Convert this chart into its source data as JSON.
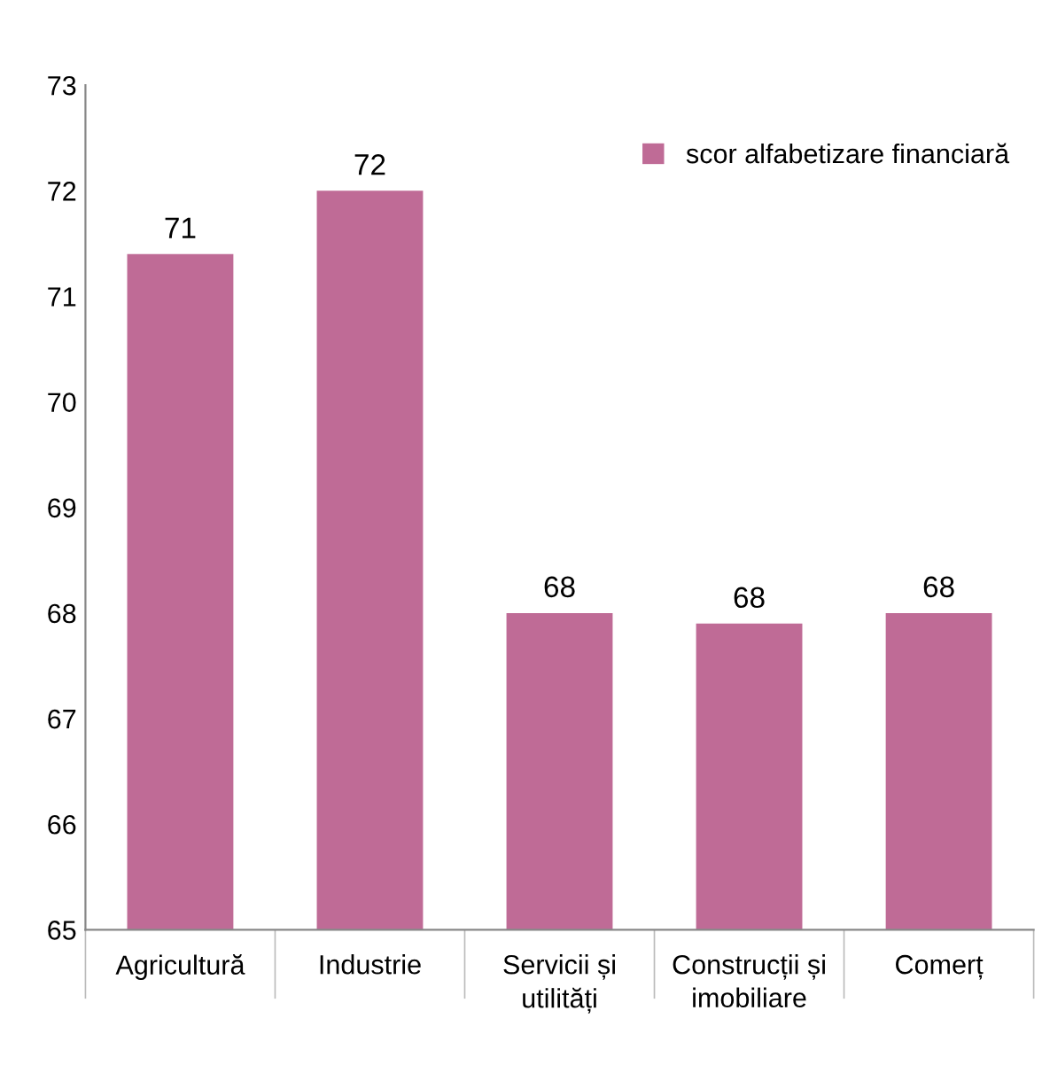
{
  "chart_data": {
    "type": "bar",
    "categories": [
      "Agricultură",
      "Industrie",
      "Servicii și\nutilități",
      "Construcții și\nimobiliare",
      "Comerț"
    ],
    "series": [
      {
        "name": "scor alfabetizare financiară",
        "color": "#bf6b96",
        "values": [
          71.4,
          72.0,
          68.0,
          67.9,
          68.0
        ],
        "value_labels": [
          "71",
          "72",
          "68",
          "68",
          "68"
        ]
      }
    ],
    "ylim": [
      65,
      73
    ],
    "yticks": [
      65,
      66,
      67,
      68,
      69,
      70,
      71,
      72,
      73
    ],
    "grid": false,
    "legend": "top right"
  }
}
